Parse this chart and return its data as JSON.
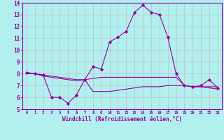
{
  "xlabel": "Windchill (Refroidissement éolien,°C)",
  "background_color": "#b2efef",
  "grid_color": "#c0c0c0",
  "line_color": "#990099",
  "xlim": [
    -0.5,
    23.5
  ],
  "ylim": [
    5,
    14
  ],
  "yticks": [
    5,
    6,
    7,
    8,
    9,
    10,
    11,
    12,
    13,
    14
  ],
  "xticks": [
    0,
    1,
    2,
    3,
    4,
    5,
    6,
    7,
    8,
    9,
    10,
    11,
    12,
    13,
    14,
    15,
    16,
    17,
    18,
    19,
    20,
    21,
    22,
    23
  ],
  "line1_x": [
    0,
    1,
    2,
    3,
    4,
    5,
    6,
    7,
    8,
    9,
    10,
    11,
    12,
    13,
    14,
    15,
    16,
    17,
    18,
    19,
    20,
    21,
    22,
    23
  ],
  "line1_y": [
    8.1,
    8.0,
    7.9,
    6.0,
    6.0,
    5.5,
    6.2,
    7.5,
    8.6,
    8.4,
    10.7,
    11.1,
    11.6,
    13.2,
    13.8,
    13.2,
    13.0,
    11.1,
    8.0,
    7.0,
    6.9,
    7.0,
    7.5,
    6.8
  ],
  "line2_x": [
    0,
    1,
    2,
    3,
    4,
    5,
    6,
    7,
    8,
    9,
    10,
    11,
    12,
    13,
    14,
    15,
    16,
    17,
    18,
    19,
    20,
    21,
    22,
    23
  ],
  "line2_y": [
    8.1,
    8.0,
    7.8,
    7.7,
    7.6,
    7.5,
    7.4,
    7.5,
    7.6,
    7.7,
    7.7,
    7.7,
    7.7,
    7.7,
    7.7,
    7.7,
    7.7,
    7.7,
    7.7,
    7.0,
    6.9,
    6.9,
    6.9,
    6.9
  ],
  "line3_x": [
    0,
    1,
    2,
    3,
    4,
    5,
    6,
    7,
    8,
    9,
    10,
    11,
    12,
    13,
    14,
    15,
    16,
    17,
    18,
    19,
    20,
    21,
    22,
    23
  ],
  "line3_y": [
    8.0,
    8.0,
    7.9,
    7.8,
    7.7,
    7.6,
    7.5,
    7.5,
    6.5,
    6.5,
    6.5,
    6.6,
    6.7,
    6.8,
    6.9,
    6.9,
    6.9,
    7.0,
    7.0,
    7.0,
    6.9,
    6.9,
    6.8,
    6.7
  ]
}
